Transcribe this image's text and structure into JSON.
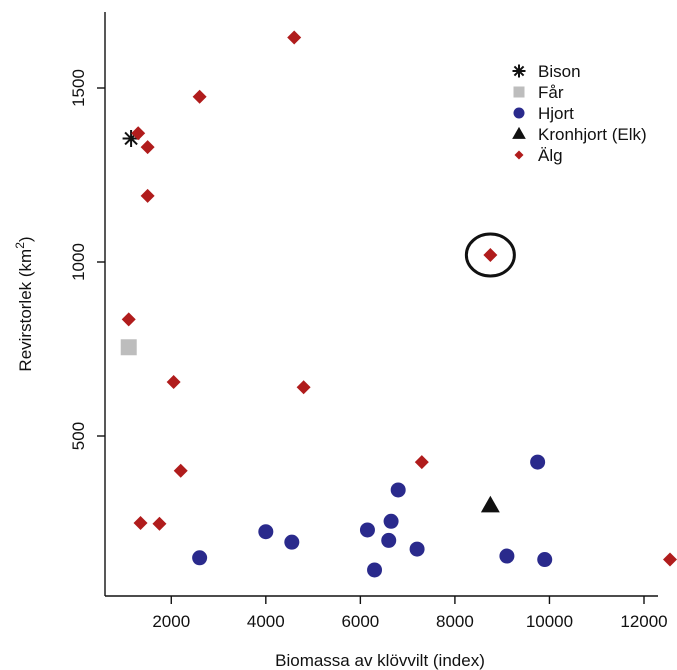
{
  "chart_data": {
    "type": "scatter",
    "title": "",
    "xlabel": "Biomassa av klövvilt (index)",
    "ylabel": "Revirstorlek (km²)",
    "ylabel_base": "Revirstorlek (km",
    "ylabel_sup": "2",
    "ylabel_end": ")",
    "xlim": [
      700,
      13000
    ],
    "ylim": [
      0,
      1720
    ],
    "x_ticks": [
      2000,
      4000,
      6000,
      8000,
      10000,
      12000
    ],
    "y_ticks": [
      500,
      1000,
      1500
    ],
    "legend_position": "top-right",
    "highlight": {
      "x": 8750,
      "y": 1020,
      "shape": "circle"
    },
    "series": [
      {
        "name": "Bison",
        "marker": "asterisk",
        "color": "#111111",
        "points": [
          {
            "x": 1150,
            "y": 1355
          }
        ]
      },
      {
        "name": "Får",
        "marker": "square",
        "color": "#bdbdbd",
        "points": [
          {
            "x": 1100,
            "y": 755
          }
        ]
      },
      {
        "name": "Hjort",
        "marker": "circle",
        "color": "#2a2a8c",
        "points": [
          {
            "x": 2600,
            "y": 150
          },
          {
            "x": 4000,
            "y": 225
          },
          {
            "x": 4550,
            "y": 195
          },
          {
            "x": 6150,
            "y": 230
          },
          {
            "x": 6300,
            "y": 115
          },
          {
            "x": 6600,
            "y": 200
          },
          {
            "x": 6650,
            "y": 255
          },
          {
            "x": 6800,
            "y": 345
          },
          {
            "x": 7200,
            "y": 175
          },
          {
            "x": 9100,
            "y": 155
          },
          {
            "x": 9750,
            "y": 425
          },
          {
            "x": 9900,
            "y": 145
          }
        ]
      },
      {
        "name": "Kronhjort (Elk)",
        "marker": "triangle",
        "color": "#111111",
        "points": [
          {
            "x": 8750,
            "y": 300
          }
        ]
      },
      {
        "name": "Älg",
        "marker": "diamond",
        "color": "#b01c1c",
        "points": [
          {
            "x": 1300,
            "y": 1370
          },
          {
            "x": 1500,
            "y": 1330
          },
          {
            "x": 1500,
            "y": 1190
          },
          {
            "x": 2600,
            "y": 1475
          },
          {
            "x": 4600,
            "y": 1645
          },
          {
            "x": 1100,
            "y": 835
          },
          {
            "x": 2050,
            "y": 655
          },
          {
            "x": 4800,
            "y": 640
          },
          {
            "x": 2200,
            "y": 400
          },
          {
            "x": 7300,
            "y": 425
          },
          {
            "x": 1350,
            "y": 250
          },
          {
            "x": 1750,
            "y": 248
          },
          {
            "x": 8750,
            "y": 1020
          },
          {
            "x": 12550,
            "y": 145
          }
        ]
      }
    ]
  }
}
